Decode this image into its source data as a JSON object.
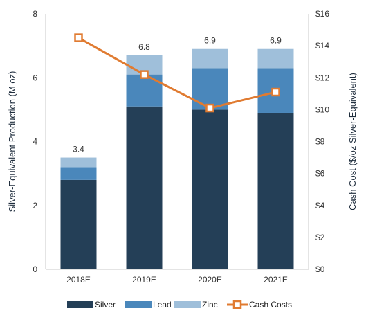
{
  "chart_data": {
    "type": "bar",
    "categories": [
      "2018E",
      "2019E",
      "2020E",
      "2021E"
    ],
    "series": [
      {
        "name": "Silver",
        "color": "#243f57",
        "values": [
          2.8,
          5.1,
          5.0,
          4.9
        ],
        "axis": "left"
      },
      {
        "name": "Lead",
        "color": "#4a87bb",
        "values": [
          0.4,
          1.0,
          1.3,
          1.4
        ],
        "axis": "left"
      },
      {
        "name": "Zinc",
        "color": "#9fbfda",
        "values": [
          0.3,
          0.6,
          0.6,
          0.6
        ],
        "axis": "left"
      }
    ],
    "line_series": {
      "name": "Cash Costs",
      "color": "#e07b31",
      "values": [
        14.5,
        12.2,
        10.1,
        11.1
      ],
      "axis": "right"
    },
    "totals_labels": [
      "3.4",
      "6.8",
      "6.9",
      "6.9"
    ],
    "ylabel": "Silver-Equivalent Production (M oz)",
    "y2label": "Cash Cost ($/oz Silver-Equivalent)",
    "ylim": [
      0,
      8
    ],
    "y2lim": [
      0,
      16
    ],
    "yticks": [
      "0",
      "2",
      "4",
      "6",
      "8"
    ],
    "y2ticks": [
      "$0",
      "$2",
      "$4",
      "$6",
      "$8",
      "$10",
      "$12",
      "$14",
      "$16"
    ],
    "grid": false,
    "legend_position": "bottom",
    "legend": [
      "Silver",
      "Lead",
      "Zinc",
      "Cash Costs"
    ]
  }
}
